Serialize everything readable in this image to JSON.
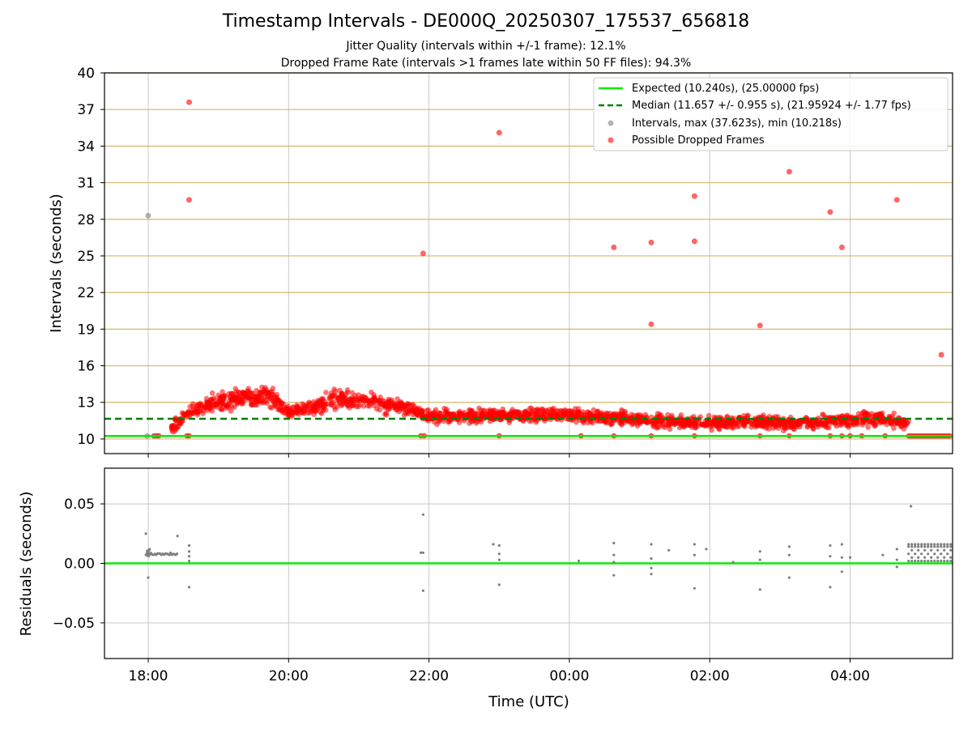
{
  "title": "Timestamp Intervals - DE000Q_20250307_175537_656818",
  "subtitle_1": "Jitter Quality (intervals within +/-1 frame): 12.1%",
  "subtitle_2": "Dropped Frame Rate (intervals >1 frames late within 50 FF files): 94.3%",
  "colors": {
    "expected": "#00ee00",
    "median": "#008000",
    "intervals": "#808080",
    "dropped": "#ff0000",
    "hgrid": "#d4b86a",
    "vgrid": "#c8c8c8"
  },
  "chart_data": [
    {
      "type": "scatter",
      "ylabel": "Intervals (seconds)",
      "x_ticks": [
        "18:00",
        "20:00",
        "22:00",
        "00:00",
        "02:00",
        "04:00"
      ],
      "y_ticks": [
        10,
        13,
        16,
        19,
        22,
        25,
        28,
        31,
        34,
        37,
        40
      ],
      "ylim": [
        8.8,
        40
      ],
      "grid": true,
      "legend_position": "top-right",
      "legend": [
        "Expected (10.240s), (25.00000 fps)",
        "Median (11.657 +/- 0.955 s), (21.95924 +/- 1.77 fps)",
        "Intervals, max (37.623s), min (10.218s)",
        "Possible Dropped Frames"
      ],
      "expected_interval": 10.24,
      "median_interval": 11.657,
      "intervals_points": [
        {
          "t": "17:59",
          "y": 10.24
        },
        {
          "t": "18:00",
          "y": 28.3
        },
        {
          "t": "18:05",
          "y": 10.25
        }
      ],
      "dropped_points": [
        {
          "t": "18:35",
          "y": 37.6
        },
        {
          "t": "18:35",
          "y": 29.6
        },
        {
          "t": "21:55",
          "y": 25.2
        },
        {
          "t": "23:00",
          "y": 35.1
        },
        {
          "t": "00:38",
          "y": 25.7
        },
        {
          "t": "01:10",
          "y": 26.1
        },
        {
          "t": "01:10",
          "y": 19.4
        },
        {
          "t": "01:47",
          "y": 29.9
        },
        {
          "t": "01:47",
          "y": 26.2
        },
        {
          "t": "02:43",
          "y": 19.3
        },
        {
          "t": "03:08",
          "y": 31.9
        },
        {
          "t": "03:43",
          "y": 28.6
        },
        {
          "t": "03:53",
          "y": 25.7
        },
        {
          "t": "04:40",
          "y": 29.6
        },
        {
          "t": "05:18",
          "y": 16.9
        }
      ],
      "dense_band_profile": [
        {
          "t": "18:20",
          "y": 11.0
        },
        {
          "t": "18:40",
          "y": 12.4
        },
        {
          "t": "19:00",
          "y": 13.0
        },
        {
          "t": "19:20",
          "y": 13.5
        },
        {
          "t": "19:40",
          "y": 13.6
        },
        {
          "t": "20:00",
          "y": 12.3
        },
        {
          "t": "20:20",
          "y": 12.6
        },
        {
          "t": "20:40",
          "y": 13.2
        },
        {
          "t": "21:00",
          "y": 13.2
        },
        {
          "t": "21:20",
          "y": 12.9
        },
        {
          "t": "21:40",
          "y": 12.5
        },
        {
          "t": "22:00",
          "y": 11.8
        },
        {
          "t": "22:30",
          "y": 11.9
        },
        {
          "t": "23:00",
          "y": 11.9
        },
        {
          "t": "23:30",
          "y": 12.0
        },
        {
          "t": "00:00",
          "y": 11.9
        },
        {
          "t": "00:30",
          "y": 11.8
        },
        {
          "t": "01:00",
          "y": 11.6
        },
        {
          "t": "01:30",
          "y": 11.4
        },
        {
          "t": "02:00",
          "y": 11.3
        },
        {
          "t": "02:30",
          "y": 11.4
        },
        {
          "t": "03:00",
          "y": 11.3
        },
        {
          "t": "03:30",
          "y": 11.3
        },
        {
          "t": "04:00",
          "y": 11.6
        },
        {
          "t": "04:30",
          "y": 11.7
        },
        {
          "t": "04:50",
          "y": 11.3
        }
      ]
    },
    {
      "type": "scatter",
      "xlabel": "Time (UTC)",
      "ylabel": "Residuals (seconds)",
      "x_ticks": [
        "18:00",
        "20:00",
        "22:00",
        "00:00",
        "02:00",
        "04:00"
      ],
      "y_ticks": [
        "0.05",
        "0.00",
        "−0.05"
      ],
      "ylim": [
        -0.08,
        0.08
      ],
      "grid": true,
      "zero_line": 0,
      "residual_points": [
        {
          "t": "17:58",
          "y": 0.025
        },
        {
          "t": "18:00",
          "y": -0.012
        },
        {
          "t": "18:00",
          "y": 0.01
        },
        {
          "t": "18:25",
          "y": 0.023
        },
        {
          "t": "18:35",
          "y": 0.015
        },
        {
          "t": "18:35",
          "y": 0.01
        },
        {
          "t": "18:35",
          "y": 0.006
        },
        {
          "t": "18:35",
          "y": 0.002
        },
        {
          "t": "18:35",
          "y": -0.02
        },
        {
          "t": "21:53",
          "y": 0.009
        },
        {
          "t": "21:55",
          "y": 0.041
        },
        {
          "t": "21:55",
          "y": 0.009
        },
        {
          "t": "21:55",
          "y": -0.023
        },
        {
          "t": "22:55",
          "y": 0.016
        },
        {
          "t": "23:00",
          "y": 0.015
        },
        {
          "t": "23:00",
          "y": 0.008
        },
        {
          "t": "23:00",
          "y": 0.003
        },
        {
          "t": "23:00",
          "y": -0.018
        },
        {
          "t": "00:08",
          "y": 0.002
        },
        {
          "t": "00:38",
          "y": 0.017
        },
        {
          "t": "00:38",
          "y": 0.007
        },
        {
          "t": "00:38",
          "y": 0.001
        },
        {
          "t": "00:38",
          "y": -0.01
        },
        {
          "t": "01:10",
          "y": 0.016
        },
        {
          "t": "01:10",
          "y": 0.004
        },
        {
          "t": "01:10",
          "y": -0.004
        },
        {
          "t": "01:10",
          "y": -0.009
        },
        {
          "t": "01:25",
          "y": 0.011
        },
        {
          "t": "01:47",
          "y": 0.016
        },
        {
          "t": "01:47",
          "y": 0.007
        },
        {
          "t": "01:47",
          "y": -0.021
        },
        {
          "t": "01:57",
          "y": 0.012
        },
        {
          "t": "02:20",
          "y": 0.001
        },
        {
          "t": "02:43",
          "y": 0.01
        },
        {
          "t": "02:43",
          "y": 0.003
        },
        {
          "t": "02:43",
          "y": -0.022
        },
        {
          "t": "03:08",
          "y": 0.014
        },
        {
          "t": "03:08",
          "y": 0.007
        },
        {
          "t": "03:08",
          "y": -0.012
        },
        {
          "t": "03:43",
          "y": 0.015
        },
        {
          "t": "03:43",
          "y": 0.006
        },
        {
          "t": "03:43",
          "y": -0.02
        },
        {
          "t": "03:53",
          "y": 0.016
        },
        {
          "t": "03:53",
          "y": 0.005
        },
        {
          "t": "03:53",
          "y": -0.007
        },
        {
          "t": "04:00",
          "y": 0.005
        },
        {
          "t": "04:28",
          "y": 0.007
        },
        {
          "t": "04:40",
          "y": 0.012
        },
        {
          "t": "04:40",
          "y": 0.003
        },
        {
          "t": "04:40",
          "y": -0.003
        },
        {
          "t": "04:52",
          "y": 0.048
        }
      ]
    }
  ]
}
